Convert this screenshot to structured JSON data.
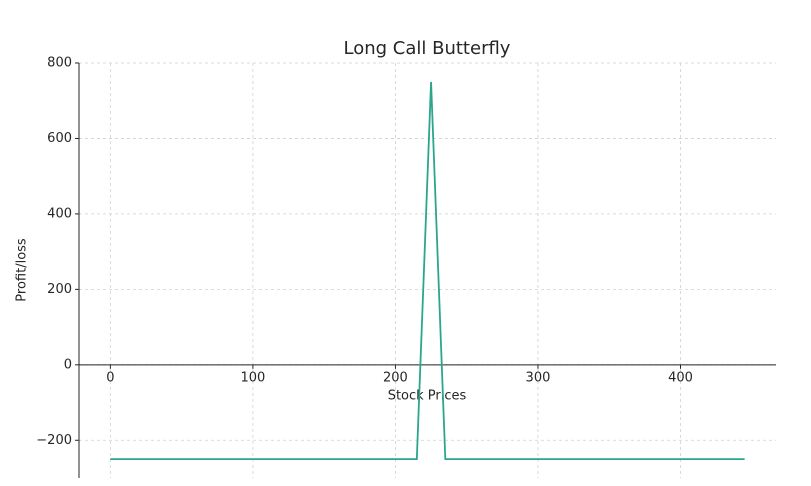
{
  "chart_data": {
    "type": "line",
    "title": "Long Call Butterfly",
    "x_label": "Stock Prices",
    "y_label": "Profit/loss",
    "x": [
      0,
      215,
      225,
      235,
      445
    ],
    "series": [
      {
        "name": "Long Call Butterfly",
        "color": "#2ca58d",
        "values": [
          -250,
          -250,
          750,
          -250,
          -250
        ]
      }
    ],
    "xlim": [
      -22,
      467
    ],
    "xticks": [
      0,
      100,
      200,
      300,
      400
    ],
    "ylim": [
      -300,
      800
    ],
    "yticks": [
      {
        "value": -200,
        "label": "−200"
      },
      0,
      200,
      400,
      600,
      800
    ],
    "grid": true
  }
}
